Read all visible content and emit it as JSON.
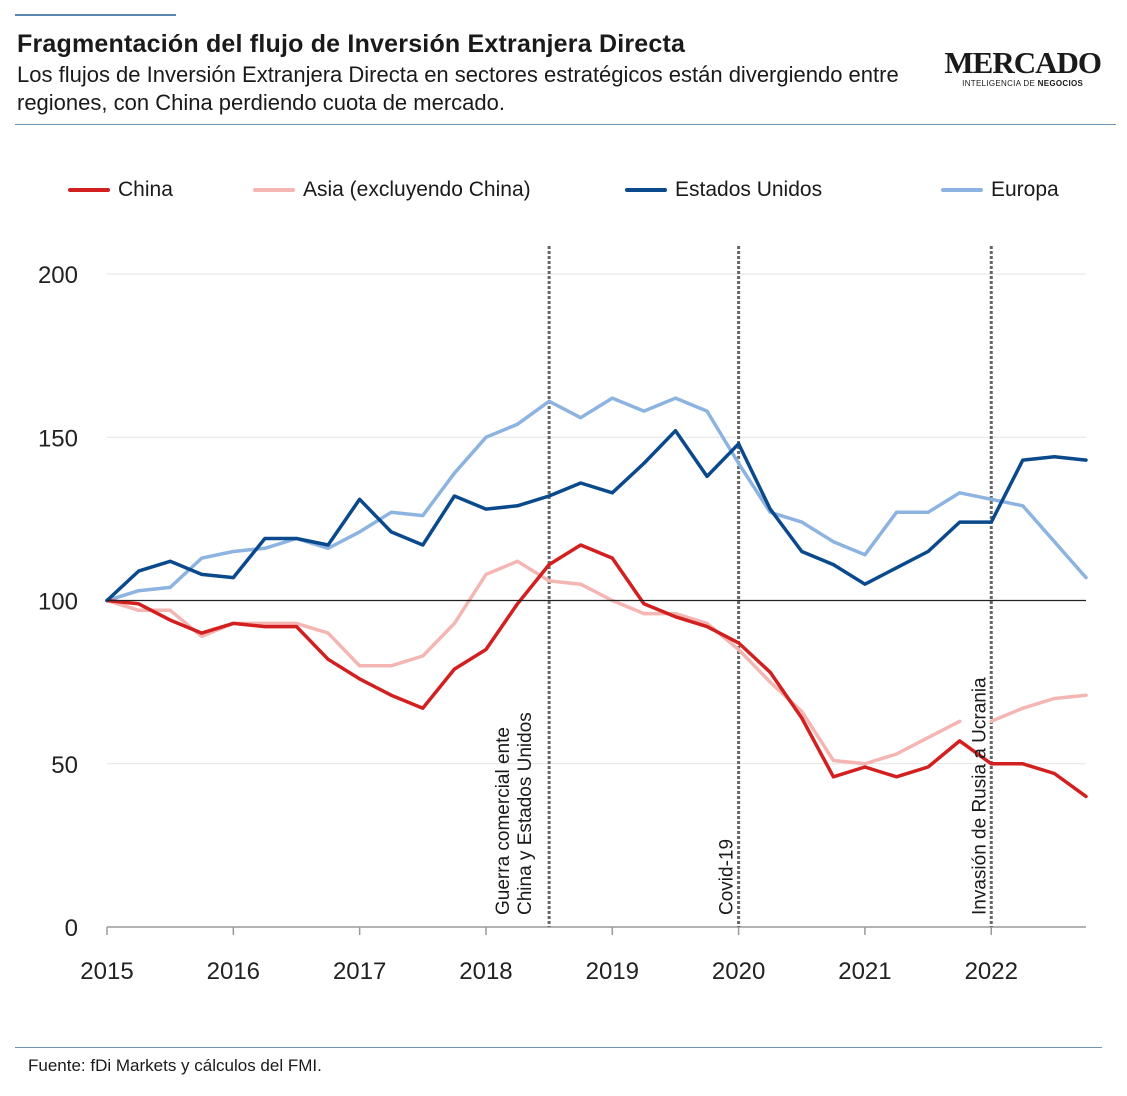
{
  "header": {
    "title": "Fragmentación del flujo de Inversión Extranjera Directa",
    "subtitle": "Los flujos de Inversión Extranjera Directa en sectores estratégicos están divergiendo entre regiones, con China perdiendo cuota de mercado."
  },
  "logo": {
    "main": "MERCADO",
    "sub": "INTELIGENCIA DE",
    "sub_bold": "NEGOCIOS"
  },
  "footer": {
    "source": "Fuente: fDi Markets y cálculos del FMI."
  },
  "chart_data": {
    "type": "line",
    "title": "",
    "xlabel": "",
    "ylabel": "",
    "xlim": [
      2015,
      2022.75
    ],
    "ylim": [
      0,
      200
    ],
    "yticks": [
      0,
      50,
      100,
      150,
      200
    ],
    "xticks": [
      2015,
      2016,
      2017,
      2018,
      2019,
      2020,
      2021,
      2022
    ],
    "grid": true,
    "legend_position": "top",
    "reference_line": 100,
    "x": [
      2015,
      2015.25,
      2015.5,
      2015.75,
      2016,
      2016.25,
      2016.5,
      2016.75,
      2017,
      2017.25,
      2017.5,
      2017.75,
      2018,
      2018.25,
      2018.5,
      2018.75,
      2019,
      2019.25,
      2019.5,
      2019.75,
      2020,
      2020.25,
      2020.5,
      2020.75,
      2021,
      2021.25,
      2021.5,
      2021.75,
      2022,
      2022.25,
      2022.5,
      2022.75
    ],
    "series": [
      {
        "name": "China",
        "color": "#d21f1f",
        "values": [
          100,
          99,
          94,
          90,
          93,
          92,
          92,
          82,
          76,
          71,
          67,
          79,
          85,
          99,
          111,
          117,
          113,
          99,
          95,
          92,
          87,
          78,
          64,
          46,
          49,
          46,
          49,
          57,
          50,
          50,
          47,
          40
        ]
      },
      {
        "name": "Asia (excluyendo China)",
        "color": "#f4b6b3",
        "gaps_after_index": [
          27
        ],
        "values": [
          100,
          97,
          97,
          89,
          93,
          93,
          93,
          90,
          80,
          80,
          83,
          93,
          108,
          112,
          106,
          105,
          100,
          96,
          96,
          93,
          85,
          75,
          66,
          51,
          50,
          53,
          58,
          63,
          63,
          67,
          70,
          71
        ]
      },
      {
        "name": "Estados Unidos",
        "color": "#0a4a8c",
        "values": [
          100,
          109,
          112,
          108,
          107,
          119,
          119,
          117,
          131,
          121,
          117,
          132,
          128,
          129,
          132,
          136,
          133,
          142,
          152,
          138,
          148,
          128,
          115,
          111,
          105,
          110,
          115,
          124,
          124,
          143,
          144,
          143
        ]
      },
      {
        "name": "Europa",
        "color": "#8db3e0",
        "values": [
          100,
          103,
          104,
          113,
          115,
          116,
          119,
          116,
          121,
          127,
          126,
          139,
          150,
          154,
          161,
          156,
          162,
          158,
          162,
          158,
          142,
          127,
          124,
          118,
          114,
          127,
          127,
          133,
          131,
          129,
          118,
          107
        ]
      }
    ],
    "annotations": [
      {
        "x": 2018.5,
        "lines": [
          "Guerra comercial ente",
          "China y Estados Unidos"
        ]
      },
      {
        "x": 2020,
        "lines": [
          "Covid-19"
        ]
      },
      {
        "x": 2022,
        "lines": [
          "Invasión de Rusia a Ucrania"
        ]
      }
    ]
  }
}
